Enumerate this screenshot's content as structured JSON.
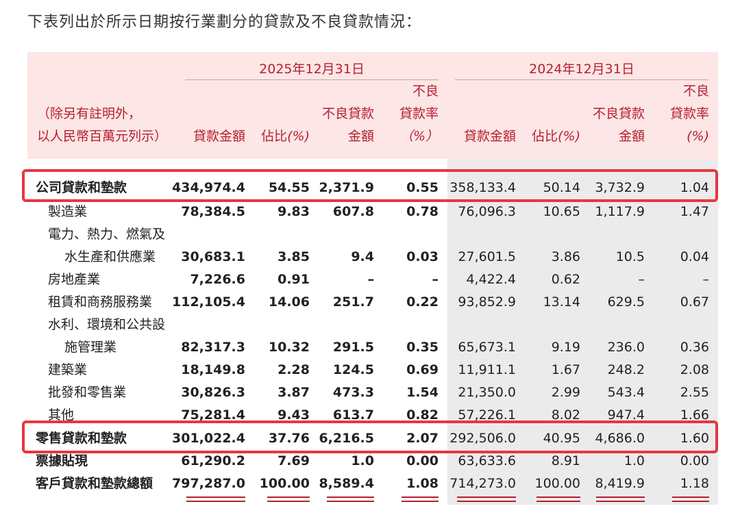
{
  "intro": "下表列出於所示日期按行業劃分的貸款及不良貸款情況：",
  "periods": {
    "current": "2025年12月31日",
    "prior": "2024年12月31日"
  },
  "unit_note": [
    "（除另有註明外，",
    "以人民幣百萬元列示）"
  ],
  "col_headers": {
    "loan_amount": "貸款金額",
    "share": "佔比",
    "share_unit": "(%)",
    "npl_amount": [
      "不良貸款",
      "金額"
    ],
    "npl_ratio": [
      "不良",
      "貸款率",
      "（%）"
    ],
    "npl_ratio_prior_unit": "(%)"
  },
  "rows": [
    {
      "label": "公司貸款和墊款",
      "bold": true,
      "indent": 0,
      "cur": [
        "434,974.4",
        "54.55",
        "2,371.9",
        "0.55"
      ],
      "prior": [
        "358,133.4",
        "50.14",
        "3,732.9",
        "1.04"
      ]
    },
    {
      "label": "製造業",
      "indent": 1,
      "cur": [
        "78,384.5",
        "9.83",
        "607.8",
        "0.78"
      ],
      "prior": [
        "76,096.3",
        "10.65",
        "1,117.9",
        "1.47"
      ]
    },
    {
      "label": "電力、熱力、燃氣及",
      "indent": 1,
      "cur": [
        "",
        "",
        "",
        ""
      ],
      "prior": [
        "",
        "",
        "",
        ""
      ]
    },
    {
      "label": "水生產和供應業",
      "indent": 2,
      "cur": [
        "30,683.1",
        "3.85",
        "9.4",
        "0.03"
      ],
      "prior": [
        "27,601.5",
        "3.86",
        "10.5",
        "0.04"
      ]
    },
    {
      "label": "房地產業",
      "indent": 1,
      "cur": [
        "7,226.6",
        "0.91",
        "–",
        "–"
      ],
      "prior": [
        "4,422.4",
        "0.62",
        "–",
        "–"
      ]
    },
    {
      "label": "租賃和商務服務業",
      "indent": 1,
      "cur": [
        "112,105.4",
        "14.06",
        "251.7",
        "0.22"
      ],
      "prior": [
        "93,852.9",
        "13.14",
        "629.5",
        "0.67"
      ]
    },
    {
      "label": "水利、環境和公共設",
      "indent": 1,
      "cur": [
        "",
        "",
        "",
        ""
      ],
      "prior": [
        "",
        "",
        "",
        ""
      ]
    },
    {
      "label": "施管理業",
      "indent": 2,
      "cur": [
        "82,317.3",
        "10.32",
        "291.5",
        "0.35"
      ],
      "prior": [
        "65,673.1",
        "9.19",
        "236.0",
        "0.36"
      ]
    },
    {
      "label": "建築業",
      "indent": 1,
      "cur": [
        "18,149.8",
        "2.28",
        "124.5",
        "0.69"
      ],
      "prior": [
        "11,911.1",
        "1.67",
        "248.2",
        "2.08"
      ]
    },
    {
      "label": "批發和零售業",
      "indent": 1,
      "cur": [
        "30,826.3",
        "3.87",
        "473.3",
        "1.54"
      ],
      "prior": [
        "21,350.0",
        "2.99",
        "543.4",
        "2.55"
      ]
    },
    {
      "label": "其他",
      "indent": 1,
      "cur": [
        "75,281.4",
        "9.43",
        "613.7",
        "0.82"
      ],
      "prior": [
        "57,226.1",
        "8.02",
        "947.4",
        "1.66"
      ]
    },
    {
      "label": "零售貸款和墊款",
      "bold": true,
      "indent": 0,
      "cur": [
        "301,022.4",
        "37.76",
        "6,216.5",
        "2.07"
      ],
      "prior": [
        "292,506.0",
        "40.95",
        "4,686.0",
        "1.60"
      ]
    },
    {
      "label": "票據貼現",
      "bold": true,
      "indent": 0,
      "cur": [
        "61,290.2",
        "7.69",
        "1.0",
        "0.00"
      ],
      "prior": [
        "63,633.6",
        "8.91",
        "1.0",
        "0.00"
      ]
    },
    {
      "label": "客戶貸款和墊款總額",
      "bold": true,
      "indent": 0,
      "cur": [
        "797,287.0",
        "100.00",
        "8,589.4",
        "1.08"
      ],
      "prior": [
        "714,273.0",
        "100.00",
        "8,419.9",
        "1.18"
      ]
    }
  ],
  "highlights": [
    "公司貸款和墊款",
    "零售貸款和墊款"
  ],
  "colors": {
    "header_bg": "#fde6e6",
    "header_text": "#b51f2f",
    "highlight": "#e8363d",
    "prior_bg": "#ebebeb"
  }
}
